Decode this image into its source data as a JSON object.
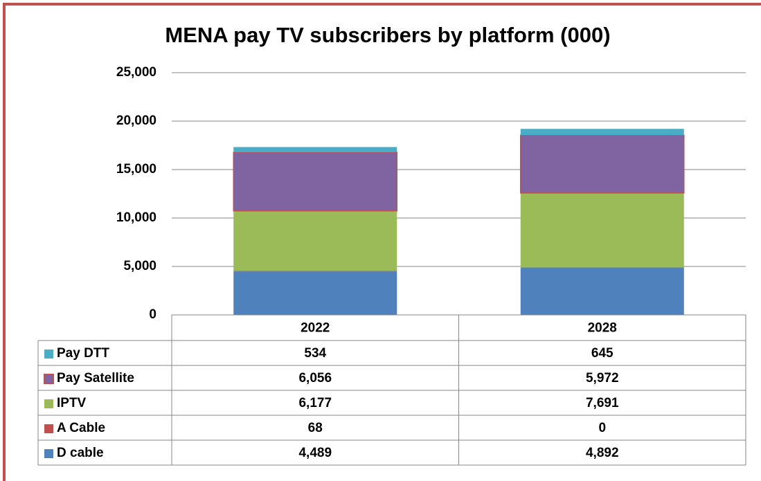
{
  "chart_data": {
    "type": "stacked_bar",
    "title": "MENA pay TV subscribers by platform (000)",
    "categories": [
      "2022",
      "2028"
    ],
    "series": [
      {
        "name": "D cable",
        "color": "#4f81bd",
        "values": [
          4489,
          4892
        ],
        "value_labels": [
          "4,489",
          "4,892"
        ]
      },
      {
        "name": "A Cable",
        "color": "#c0504d",
        "values": [
          68,
          0
        ],
        "value_labels": [
          "68",
          "0"
        ]
      },
      {
        "name": "IPTV",
        "color": "#9bbb59",
        "values": [
          6177,
          7691
        ],
        "value_labels": [
          "6,177",
          "7,691"
        ]
      },
      {
        "name": "Pay Satellite",
        "color": "#8064a2",
        "edgecolor": "#c0504d",
        "values": [
          6056,
          5972
        ],
        "value_labels": [
          "6,056",
          "5,972"
        ]
      },
      {
        "name": "Pay DTT",
        "color": "#4bacc6",
        "values": [
          534,
          645
        ],
        "value_labels": [
          "534",
          "645"
        ]
      }
    ],
    "ylim": [
      0,
      25000
    ],
    "yticks": [
      0,
      {
        "value": 5000,
        "label": "5,000"
      },
      {
        "value": 10000,
        "label": "10,000"
      },
      {
        "value": 15000,
        "label": "15,000"
      },
      {
        "value": 20000,
        "label": "20,000"
      },
      {
        "value": 25000,
        "label": "25,000"
      }
    ],
    "grid": true
  }
}
